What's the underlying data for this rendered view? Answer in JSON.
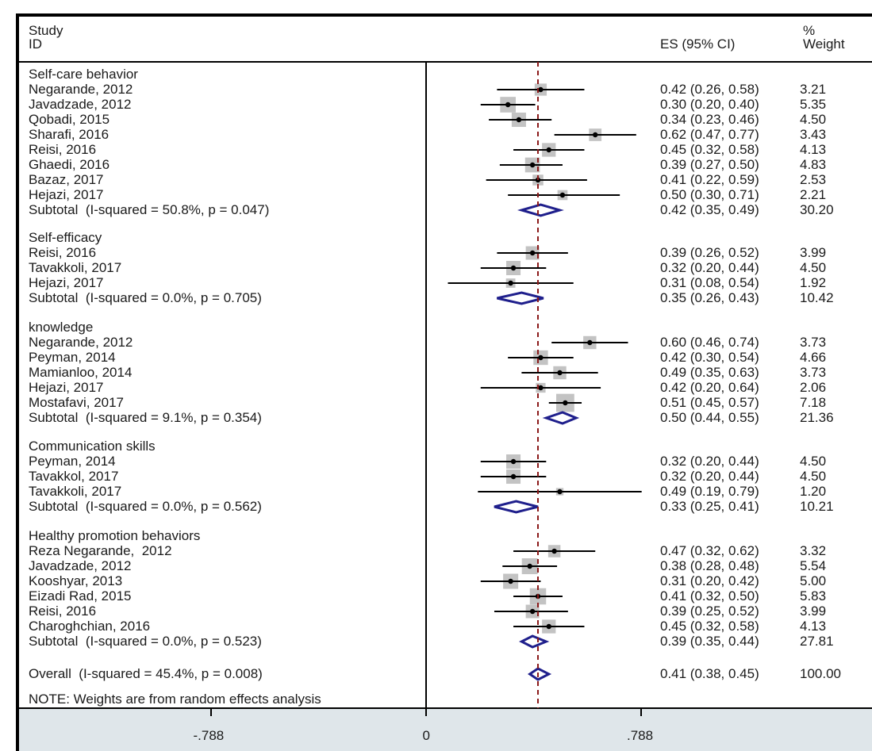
{
  "header": {
    "study_label": "Study",
    "id_label": "ID",
    "es_label": "ES (95% CI)",
    "percent_label": "%",
    "weight_label": "Weight"
  },
  "note": "NOTE: Weights are from random effects analysis",
  "colors": {
    "diamond": "#1f1f8c",
    "null_line": "#8b1a1a",
    "box": "#b8b8b8"
  },
  "chart_data": {
    "type": "forest",
    "reference_line": 0.41,
    "xticks": [
      {
        "value": -0.788,
        "label": "-.788"
      },
      {
        "value": 0,
        "label": "0"
      },
      {
        "value": 0.788,
        "label": ".788"
      }
    ],
    "groups": [
      {
        "title": "Self-care behavior",
        "studies": [
          {
            "name": "Negarande, 2012",
            "es": 0.42,
            "lo": 0.26,
            "hi": 0.58,
            "ci": "0.42 (0.26, 0.58)",
            "weight": "3.21"
          },
          {
            "name": "Javadzade, 2012",
            "es": 0.3,
            "lo": 0.2,
            "hi": 0.4,
            "ci": "0.30 (0.20, 0.40)",
            "weight": "5.35"
          },
          {
            "name": "Qobadi, 2015",
            "es": 0.34,
            "lo": 0.23,
            "hi": 0.46,
            "ci": "0.34 (0.23, 0.46)",
            "weight": "4.50"
          },
          {
            "name": "Sharafi, 2016",
            "es": 0.62,
            "lo": 0.47,
            "hi": 0.77,
            "ci": "0.62 (0.47, 0.77)",
            "weight": "3.43"
          },
          {
            "name": "Reisi, 2016",
            "es": 0.45,
            "lo": 0.32,
            "hi": 0.58,
            "ci": "0.45 (0.32, 0.58)",
            "weight": "4.13"
          },
          {
            "name": "Ghaedi, 2016",
            "es": 0.39,
            "lo": 0.27,
            "hi": 0.5,
            "ci": "0.39 (0.27, 0.50)",
            "weight": "4.83"
          },
          {
            "name": "Bazaz, 2017",
            "es": 0.41,
            "lo": 0.22,
            "hi": 0.59,
            "ci": "0.41 (0.22, 0.59)",
            "weight": "2.53"
          },
          {
            "name": "Hejazi, 2017",
            "es": 0.5,
            "lo": 0.3,
            "hi": 0.71,
            "ci": "0.50 (0.30, 0.71)",
            "weight": "2.21"
          }
        ],
        "subtotal": {
          "label": "Subtotal  (I-squared = 50.8%, p = 0.047)",
          "es": 0.42,
          "lo": 0.35,
          "hi": 0.49,
          "ci": "0.42 (0.35, 0.49)",
          "weight": "30.20"
        }
      },
      {
        "title": "Self-efficacy",
        "studies": [
          {
            "name": "Reisi, 2016",
            "es": 0.39,
            "lo": 0.26,
            "hi": 0.52,
            "ci": "0.39 (0.26, 0.52)",
            "weight": "3.99"
          },
          {
            "name": "Tavakkoli, 2017",
            "es": 0.32,
            "lo": 0.2,
            "hi": 0.44,
            "ci": "0.32 (0.20, 0.44)",
            "weight": "4.50"
          },
          {
            "name": "Hejazi, 2017",
            "es": 0.31,
            "lo": 0.08,
            "hi": 0.54,
            "ci": "0.31 (0.08, 0.54)",
            "weight": "1.92"
          }
        ],
        "subtotal": {
          "label": "Subtotal  (I-squared = 0.0%, p = 0.705)",
          "es": 0.35,
          "lo": 0.26,
          "hi": 0.43,
          "ci": "0.35 (0.26, 0.43)",
          "weight": "10.42"
        }
      },
      {
        "title": "knowledge",
        "studies": [
          {
            "name": "Negarande, 2012",
            "es": 0.6,
            "lo": 0.46,
            "hi": 0.74,
            "ci": "0.60 (0.46, 0.74)",
            "weight": "3.73"
          },
          {
            "name": "Peyman, 2014",
            "es": 0.42,
            "lo": 0.3,
            "hi": 0.54,
            "ci": "0.42 (0.30, 0.54)",
            "weight": "4.66"
          },
          {
            "name": "Mamianloo, 2014",
            "es": 0.49,
            "lo": 0.35,
            "hi": 0.63,
            "ci": "0.49 (0.35, 0.63)",
            "weight": "3.73"
          },
          {
            "name": "Hejazi, 2017",
            "es": 0.42,
            "lo": 0.2,
            "hi": 0.64,
            "ci": "0.42 (0.20, 0.64)",
            "weight": "2.06"
          },
          {
            "name": "Mostafavi, 2017",
            "es": 0.51,
            "lo": 0.45,
            "hi": 0.57,
            "ci": "0.51 (0.45, 0.57)",
            "weight": "7.18"
          }
        ],
        "subtotal": {
          "label": "Subtotal  (I-squared = 9.1%, p = 0.354)",
          "es": 0.5,
          "lo": 0.44,
          "hi": 0.55,
          "ci": "0.50 (0.44, 0.55)",
          "weight": "21.36"
        }
      },
      {
        "title": "Communication skills",
        "studies": [
          {
            "name": "Peyman, 2014",
            "es": 0.32,
            "lo": 0.2,
            "hi": 0.44,
            "ci": "0.32 (0.20, 0.44)",
            "weight": "4.50"
          },
          {
            "name": "Tavakkol, 2017",
            "es": 0.32,
            "lo": 0.2,
            "hi": 0.44,
            "ci": "0.32 (0.20, 0.44)",
            "weight": "4.50"
          },
          {
            "name": "Tavakkoli, 2017",
            "es": 0.49,
            "lo": 0.19,
            "hi": 0.79,
            "ci": "0.49 (0.19, 0.79)",
            "weight": "1.20"
          }
        ],
        "subtotal": {
          "label": "Subtotal  (I-squared = 0.0%, p = 0.562)",
          "es": 0.33,
          "lo": 0.25,
          "hi": 0.41,
          "ci": "0.33 (0.25, 0.41)",
          "weight": "10.21"
        }
      },
      {
        "title": "Healthy promotion behaviors",
        "studies": [
          {
            "name": "Reza Negarande,  2012",
            "es": 0.47,
            "lo": 0.32,
            "hi": 0.62,
            "ci": "0.47 (0.32, 0.62)",
            "weight": "3.32"
          },
          {
            "name": "Javadzade, 2012",
            "es": 0.38,
            "lo": 0.28,
            "hi": 0.48,
            "ci": "0.38 (0.28, 0.48)",
            "weight": "5.54"
          },
          {
            "name": "Kooshyar, 2013",
            "es": 0.31,
            "lo": 0.2,
            "hi": 0.42,
            "ci": "0.31 (0.20, 0.42)",
            "weight": "5.00"
          },
          {
            "name": "Eizadi Rad, 2015",
            "es": 0.41,
            "lo": 0.32,
            "hi": 0.5,
            "ci": "0.41 (0.32, 0.50)",
            "weight": "5.83"
          },
          {
            "name": "Reisi, 2016",
            "es": 0.39,
            "lo": 0.25,
            "hi": 0.52,
            "ci": "0.39 (0.25, 0.52)",
            "weight": "3.99"
          },
          {
            "name": "Charoghchian, 2016",
            "es": 0.45,
            "lo": 0.32,
            "hi": 0.58,
            "ci": "0.45 (0.32, 0.58)",
            "weight": "4.13"
          }
        ],
        "subtotal": {
          "label": "Subtotal  (I-squared = 0.0%, p = 0.523)",
          "es": 0.39,
          "lo": 0.35,
          "hi": 0.44,
          "ci": "0.39 (0.35, 0.44)",
          "weight": "27.81"
        }
      }
    ],
    "overall": {
      "label": "Overall  (I-squared = 45.4%, p = 0.008)",
      "es": 0.41,
      "lo": 0.38,
      "hi": 0.45,
      "ci": "0.41 (0.38, 0.45)",
      "weight": "100.00"
    }
  }
}
